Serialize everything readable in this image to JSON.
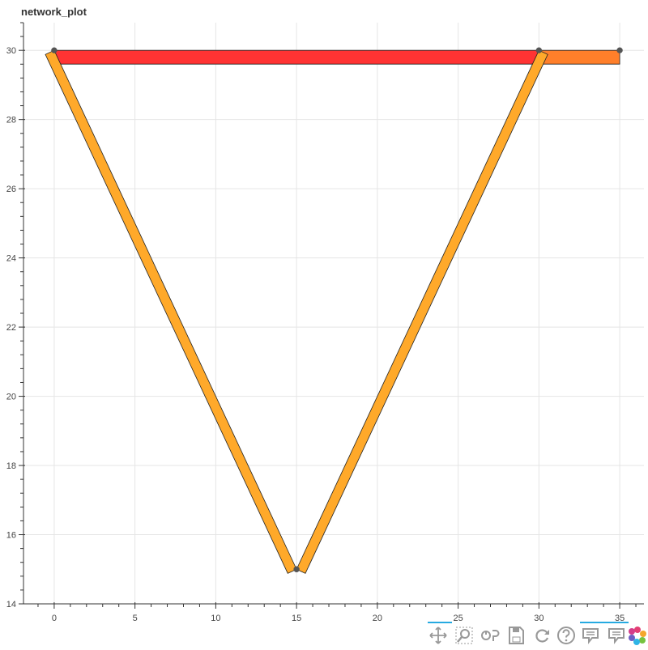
{
  "chart_data": {
    "type": "network",
    "title": "network_plot",
    "xlabel": "",
    "ylabel": "",
    "xlim": [
      -1.9,
      36.5
    ],
    "ylim": [
      14,
      30.8
    ],
    "x_ticks": [
      0,
      5,
      10,
      15,
      20,
      25,
      30,
      35
    ],
    "y_ticks": [
      14,
      16,
      18,
      20,
      22,
      24,
      26,
      28,
      30
    ],
    "grid": true,
    "nodes": [
      {
        "x": 0,
        "y": 30
      },
      {
        "x": 30,
        "y": 30
      },
      {
        "x": 35,
        "y": 30
      },
      {
        "x": 15,
        "y": 15
      }
    ],
    "edges": [
      {
        "source": 0,
        "target": 1,
        "color": "#ff3333"
      },
      {
        "source": 1,
        "target": 2,
        "color": "#ff7f2a"
      },
      {
        "source": 0,
        "target": 3,
        "color": "#ffa92a"
      },
      {
        "source": 3,
        "target": 1,
        "color": "#ffa92a"
      }
    ]
  },
  "toolbar": {
    "tools": [
      {
        "name": "pan-tool",
        "icon": "pan-icon",
        "active": true
      },
      {
        "name": "box-zoom-tool",
        "icon": "box-zoom-icon",
        "active": false
      },
      {
        "name": "wheel-zoom-tool",
        "icon": "wheel-zoom-icon",
        "active": false
      },
      {
        "name": "save-tool",
        "icon": "save-icon",
        "active": false
      },
      {
        "name": "reset-tool",
        "icon": "reset-icon",
        "active": false
      },
      {
        "name": "help-tool",
        "icon": "help-icon",
        "active": false
      },
      {
        "name": "hover-tool-1",
        "icon": "hover-icon",
        "active": true
      },
      {
        "name": "hover-tool-2",
        "icon": "hover-icon",
        "active": false
      },
      {
        "name": "bokeh-logo",
        "icon": "bokeh-logo-icon",
        "active": false
      }
    ],
    "accent_color": "#26aae1"
  }
}
